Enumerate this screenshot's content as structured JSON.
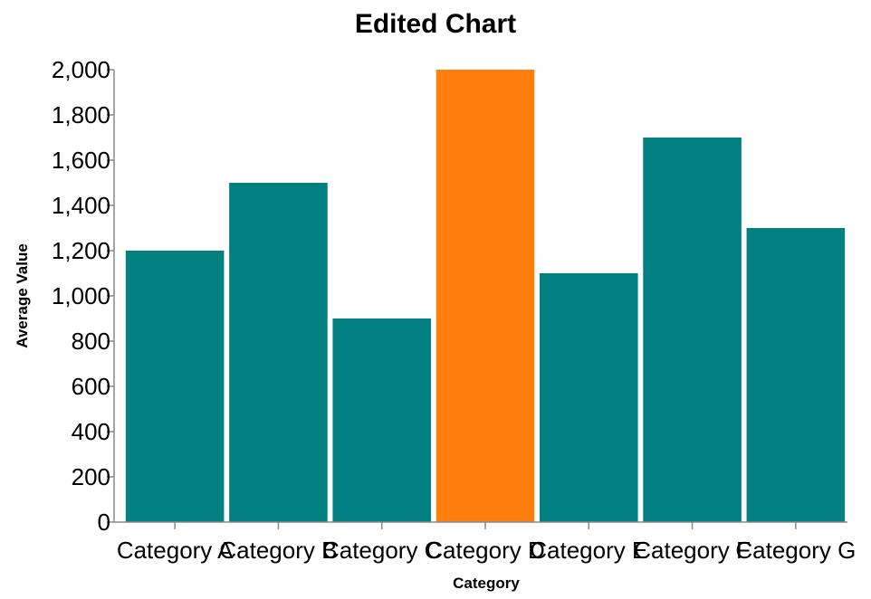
{
  "chart_data": {
    "type": "bar",
    "title": "Edited Chart",
    "xlabel": "Category",
    "ylabel": "Average Value",
    "categories": [
      "Category A",
      "Category B",
      "Category C",
      "Category D",
      "Category E",
      "Category F",
      "Category G"
    ],
    "values": [
      1200,
      1500,
      900,
      2000,
      1100,
      1700,
      1300
    ],
    "ylim": [
      0,
      2000
    ],
    "yticks": [
      0,
      200,
      400,
      600,
      800,
      1000,
      1200,
      1400,
      1600,
      1800,
      2000
    ],
    "ytick_labels": [
      "0",
      "200",
      "400",
      "600",
      "800",
      "1,000",
      "1,200",
      "1,400",
      "1,600",
      "1,800",
      "2,000"
    ],
    "grid": false,
    "legend": "none",
    "colors": {
      "default_bar": "#008080",
      "highlight_bar": "#ff7f0e",
      "axis": "#888888"
    },
    "highlight_category": "Category D"
  }
}
